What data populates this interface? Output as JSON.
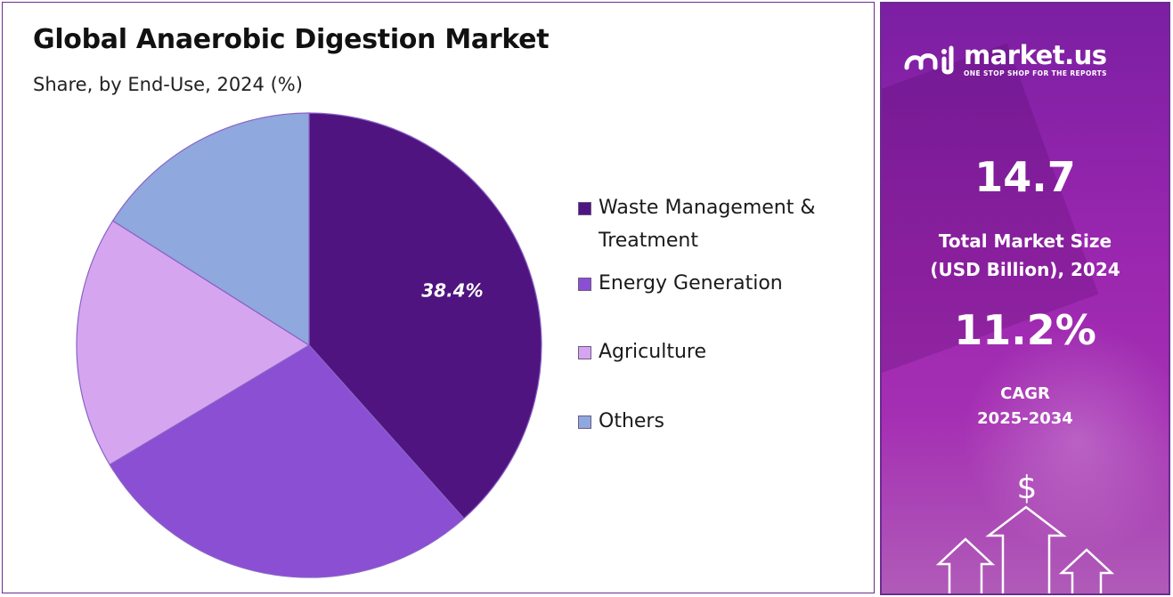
{
  "chart_data": {
    "type": "pie",
    "title": "Global Anaerobic Digestion Market",
    "subtitle": "Share, by End-Use, 2024 (%)",
    "categories": [
      "Waste Management & Treatment",
      "Energy Generation",
      "Agriculture",
      "Others"
    ],
    "values": [
      38.4,
      28.0,
      17.6,
      16.0
    ],
    "colors": [
      "#4f1480",
      "#8a4fd3",
      "#d5a6ef",
      "#8fa8de"
    ],
    "data_labels": [
      "38.4%",
      "",
      "",
      ""
    ],
    "legend_position": "right"
  },
  "brand": {
    "name": "market.us",
    "tagline": "ONE STOP SHOP FOR THE REPORTS",
    "logo_icon": "market-us-logo"
  },
  "stats": {
    "market_size_value": "14.7",
    "market_size_label_1": "Total Market Size",
    "market_size_label_2": "(USD Billion), 2024",
    "cagr_value": "11.2%",
    "cagr_label_1": "CAGR",
    "cagr_label_2": "2025-2034"
  },
  "decor": {
    "currency_symbol": "$",
    "icons": [
      "dollar-icon",
      "up-arrow-icon"
    ]
  }
}
